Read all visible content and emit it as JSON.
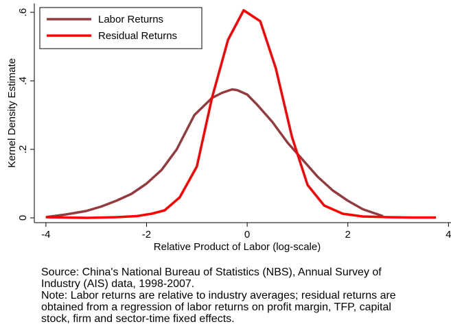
{
  "chart_data": {
    "type": "line",
    "xlabel": "Relative Product of Labor (log-scale)",
    "ylabel": "Kernel Density Estimate",
    "xlim": [
      -4.23,
      4.05
    ],
    "ylim": [
      -0.014,
      0.626
    ],
    "xticks": [
      -4,
      -2,
      0,
      2,
      4
    ],
    "yticks": [
      0,
      {
        "value": 0.2,
        "label": ".2"
      },
      {
        "value": 0.4,
        "label": ".4"
      },
      {
        "value": 0.6,
        "label": ".6"
      }
    ],
    "legend": "top-left",
    "series": [
      {
        "name": "Labor Returns",
        "color": "#943a3e",
        "x": [
          -4,
          -3.6,
          -3.2,
          -2.9,
          -2.6,
          -2.3,
          -2.0,
          -1.7,
          -1.4,
          -1.05,
          -0.7,
          -0.5,
          -0.3,
          -0.2,
          0,
          0.2,
          0.5,
          0.8,
          1.1,
          1.4,
          1.7,
          2.0,
          2.3,
          2.6,
          2.7
        ],
        "values": [
          0.002,
          0.01,
          0.02,
          0.033,
          0.05,
          0.07,
          0.1,
          0.14,
          0.2,
          0.3,
          0.35,
          0.365,
          0.375,
          0.373,
          0.36,
          0.33,
          0.28,
          0.22,
          0.17,
          0.12,
          0.08,
          0.05,
          0.025,
          0.01,
          0.005
        ]
      },
      {
        "name": "Residual Returns",
        "color": "#ff0000",
        "x": [
          -4,
          -3.2,
          -2.6,
          -2.2,
          -1.9,
          -1.64,
          -1.34,
          -1.0,
          -0.7,
          -0.38,
          -0.07,
          0.26,
          0.57,
          0.89,
          1.2,
          1.53,
          1.9,
          2.3,
          2.8,
          3.3,
          3.75
        ],
        "values": [
          0.002,
          0.0,
          0.002,
          0.005,
          0.012,
          0.022,
          0.06,
          0.15,
          0.35,
          0.52,
          0.606,
          0.574,
          0.436,
          0.236,
          0.096,
          0.036,
          0.012,
          0.004,
          0.002,
          0.001,
          0.001
        ]
      }
    ],
    "notes": [
      "Source: China's National Bureau of Statistics (NBS), Annual Survey of",
      "Industry (AIS) data, 1998-2007.",
      "Note: Labor returns are relative to industry averages; residual returns are",
      "obtained from a regression of labor returns on profit margin, TFP, capital",
      "stock, firm and sector-time fixed effects."
    ]
  }
}
